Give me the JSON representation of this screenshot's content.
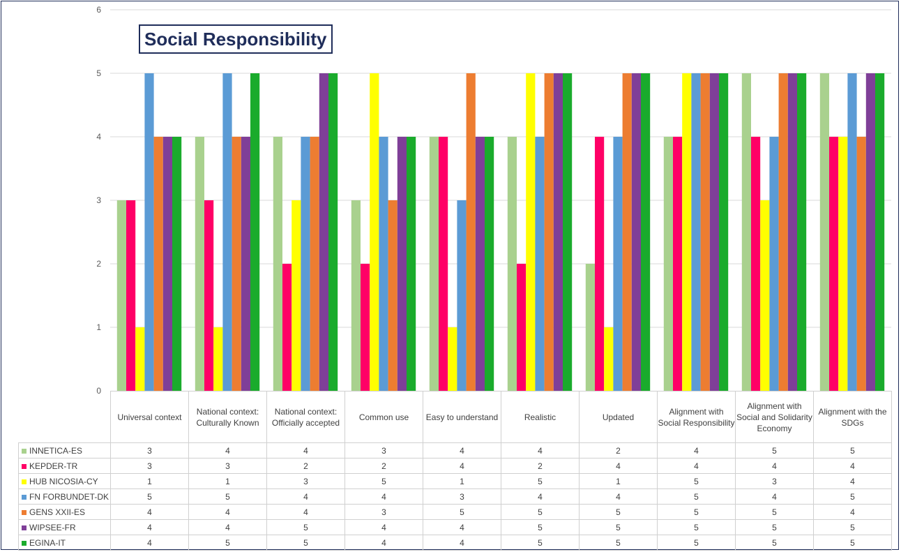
{
  "chart_data": {
    "type": "bar",
    "title": "Social Responsibility",
    "ylim": [
      0,
      6
    ],
    "yticks": [
      0,
      1,
      2,
      3,
      4,
      5,
      6
    ],
    "grid": true,
    "legend": "data-table",
    "categories": [
      "Universal context",
      "National context: Culturally Known",
      "National context: Officially accepted",
      "Common use",
      "Easy to understand",
      "Realistic",
      "Updated",
      "Alignment with Social Responsibility",
      "Alignment with Social and Solidarity Economy",
      "Alignment with the SDGs"
    ],
    "series": [
      {
        "name": "INNETICA-ES",
        "color": "#a9d18e",
        "values": [
          3,
          4,
          4,
          3,
          4,
          4,
          2,
          4,
          5,
          5
        ]
      },
      {
        "name": "KEPDER-TR",
        "color": "#ff0066",
        "values": [
          3,
          3,
          2,
          2,
          4,
          2,
          4,
          4,
          4,
          4
        ]
      },
      {
        "name": "HUB NICOSIA-CY",
        "color": "#ffff00",
        "values": [
          1,
          1,
          3,
          5,
          1,
          5,
          1,
          5,
          3,
          4
        ]
      },
      {
        "name": "FN FORBUNDET-DK",
        "color": "#5b9bd5",
        "values": [
          5,
          5,
          4,
          4,
          3,
          4,
          4,
          5,
          4,
          5
        ]
      },
      {
        "name": "GENS XXII-ES",
        "color": "#ed7d31",
        "values": [
          4,
          4,
          4,
          3,
          5,
          5,
          5,
          5,
          5,
          4
        ]
      },
      {
        "name": "WIPSEE-FR",
        "color": "#7f3f98",
        "values": [
          4,
          4,
          5,
          4,
          4,
          5,
          5,
          5,
          5,
          5
        ]
      },
      {
        "name": "EGINA-IT",
        "color": "#1aab2c",
        "values": [
          4,
          5,
          5,
          4,
          4,
          5,
          5,
          5,
          5,
          5
        ]
      }
    ],
    "colors": {
      "gridline": "#d9d9d9",
      "title_border": "#1f2d5a",
      "axis_text": "#595959"
    }
  }
}
